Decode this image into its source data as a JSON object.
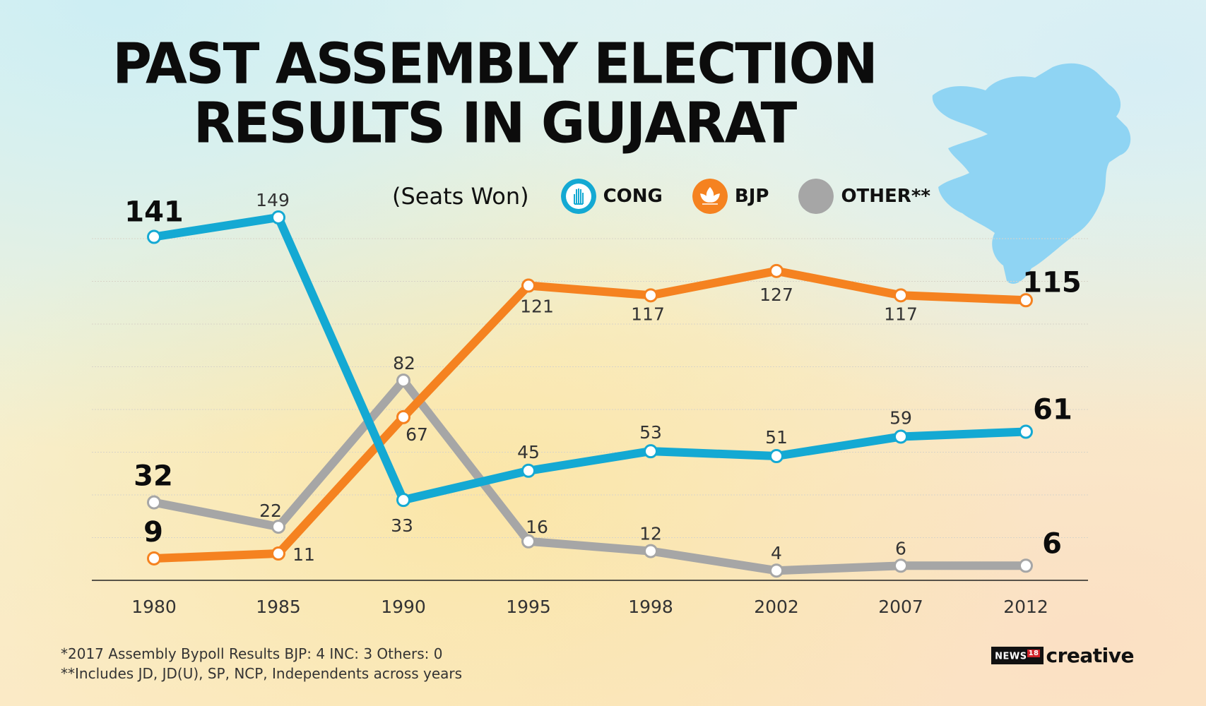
{
  "title_lines": [
    "PAST ASSEMBLY ELECTION",
    "RESULTS IN GUJARAT"
  ],
  "legend": {
    "subtitle": "(Seats Won)",
    "items": [
      {
        "label": "CONG",
        "color": "#14a9d3",
        "icon": "hand-symbol-icon"
      },
      {
        "label": "BJP",
        "color": "#f58220",
        "icon": "lotus-symbol-icon"
      },
      {
        "label": "OTHER**",
        "color": "#a6a6a6",
        "icon": "grey-circle-icon"
      }
    ]
  },
  "notes": [
    "*2017 Assembly Bypoll Results BJP: 4 INC: 3 Others: 0",
    "**Includes JD, JD(U), SP, NCP, Independents across years"
  ],
  "brand": {
    "news": "NEWS",
    "number": "18",
    "creative": "creative"
  },
  "map_icon": "gujarat-map-icon",
  "chart_data": {
    "type": "line",
    "categories": [
      "1980",
      "1985",
      "1990",
      "1995",
      "1998",
      "2002",
      "2007",
      "2012"
    ],
    "ylim": [
      0,
      150
    ],
    "grid": true,
    "legend_position": "top",
    "series": [
      {
        "name": "CONG",
        "color": "#14a9d3",
        "values": [
          141,
          149,
          33,
          45,
          53,
          51,
          59,
          61
        ]
      },
      {
        "name": "BJP",
        "color": "#f58220",
        "values": [
          9,
          11,
          67,
          121,
          117,
          127,
          117,
          115
        ]
      },
      {
        "name": "OTHER**",
        "color": "#a6a6a6",
        "values": [
          32,
          22,
          82,
          16,
          12,
          4,
          6,
          6
        ]
      }
    ]
  }
}
